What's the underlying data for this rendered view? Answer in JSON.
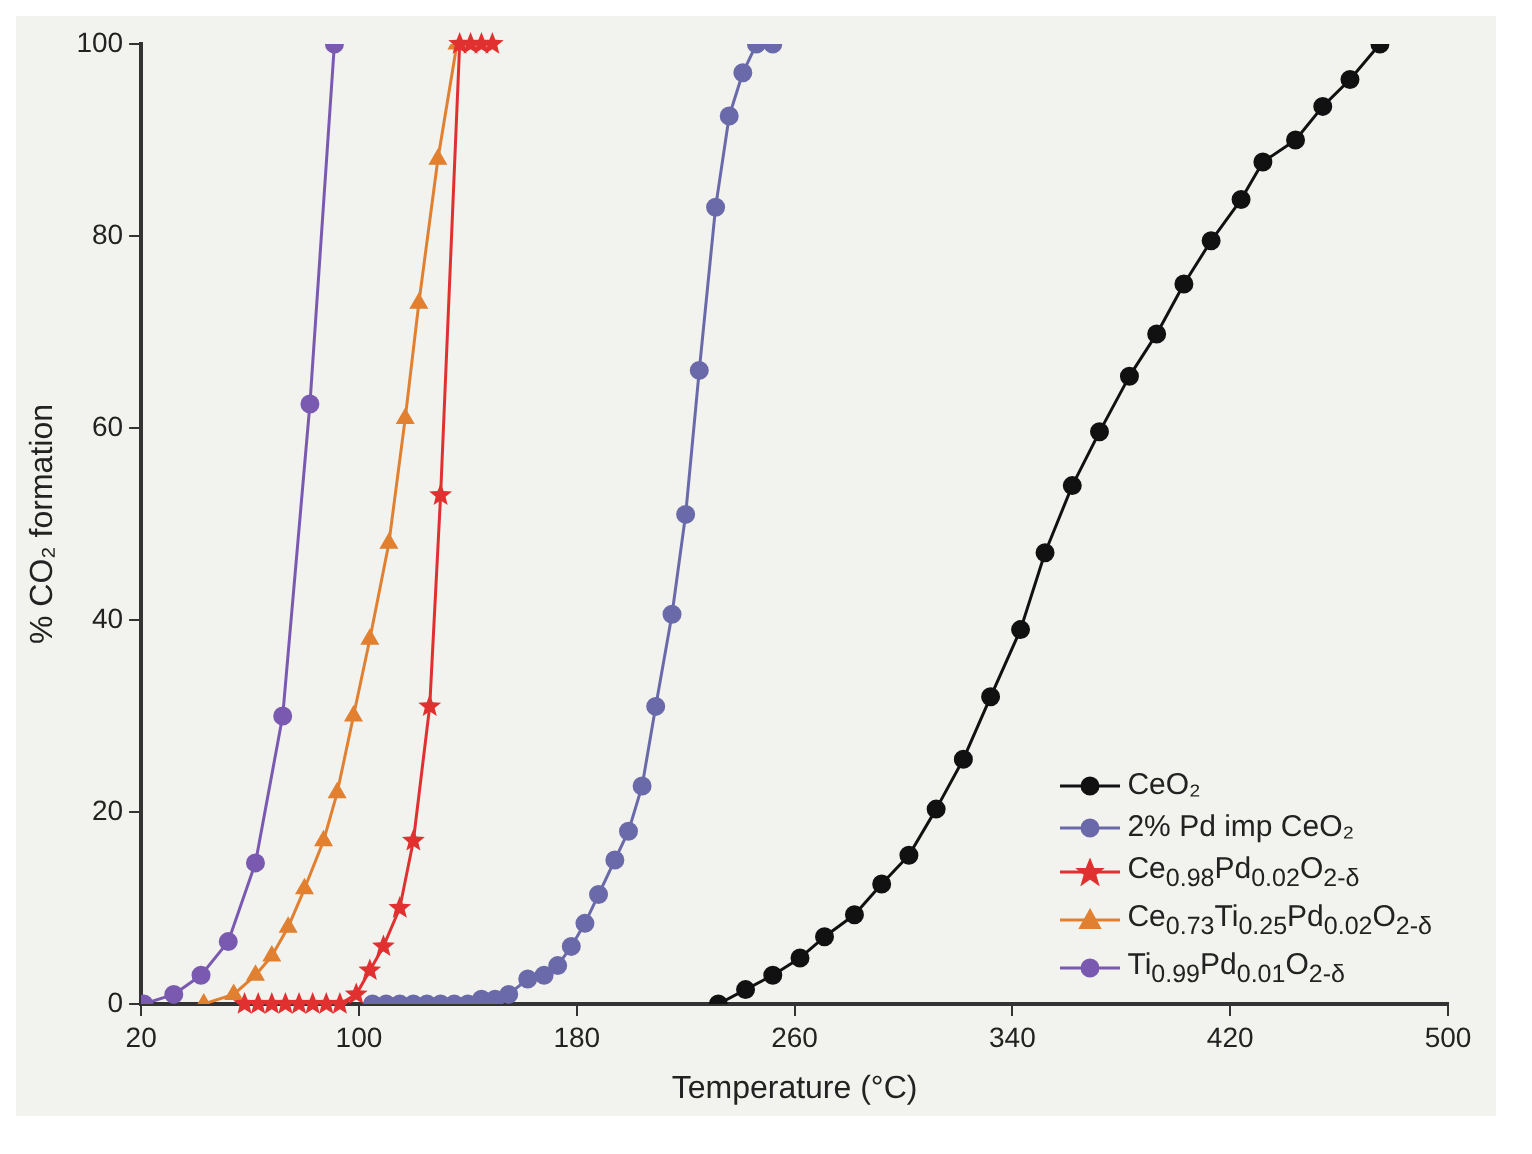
{
  "chart_data": {
    "type": "line",
    "xlabel": "Temperature (°C)",
    "ylabel": "% CO₂ formation",
    "xlim": [
      20,
      500
    ],
    "xticks": [
      20,
      100,
      180,
      260,
      340,
      420,
      500
    ],
    "ylim": [
      0,
      100
    ],
    "yticks": [
      0,
      20,
      40,
      60,
      80,
      100
    ],
    "grid": false,
    "legend": "bottom right",
    "line_style": "solid",
    "series": [
      {
        "name": "CeO₂",
        "color": "#111111",
        "marker": "circle",
        "x": [
          232,
          242,
          252,
          262,
          271,
          282,
          292,
          302,
          312,
          322,
          332,
          343,
          352,
          362,
          372,
          383,
          393,
          403,
          413,
          424,
          432,
          444,
          454,
          464,
          475
        ],
        "values": [
          0,
          1.5,
          3,
          4.8,
          7,
          9.3,
          12.5,
          15.5,
          20.3,
          25.5,
          32,
          39,
          47,
          54,
          59.6,
          65.4,
          69.8,
          75,
          79.5,
          83.8,
          87.7,
          90,
          93.5,
          96.3,
          100
        ]
      },
      {
        "name": "2% Pd imp CeO₂",
        "color": "#6a6aaa",
        "marker": "circle",
        "x": [
          105,
          110,
          115,
          120,
          125,
          130,
          135,
          140,
          145,
          150,
          155,
          162,
          168,
          173,
          178,
          183,
          188,
          194,
          199,
          204,
          209,
          215,
          220,
          225,
          231,
          236,
          241,
          246,
          252
        ],
        "values": [
          0,
          0,
          0,
          0,
          0,
          0,
          0,
          0,
          0.5,
          0.5,
          1,
          2.6,
          3,
          4,
          6,
          8.4,
          11.4,
          15,
          18,
          22.7,
          31,
          40.6,
          51,
          66,
          83,
          92.5,
          97,
          100,
          100
        ]
      },
      {
        "name": "Ce$_{0.98}$Pd$_{0.02}$O$_{2-δ}$",
        "color": "#e03030",
        "marker": "star",
        "x": [
          58,
          63,
          68,
          73,
          78,
          83,
          88,
          93,
          99,
          104,
          109,
          115,
          120,
          126,
          130,
          137,
          141,
          145,
          149
        ],
        "values": [
          0,
          0,
          0,
          0,
          0,
          0,
          0,
          0,
          1,
          3.5,
          6,
          10,
          17,
          31,
          53,
          100,
          100,
          100,
          100
        ]
      },
      {
        "name": "Ce$_{0.73}$Ti$_{0.25}$Pd$_{0.02}$O$_{2-δ}$",
        "color": "#e08030",
        "marker": "triangle",
        "x": [
          43,
          54,
          62,
          68,
          74,
          80,
          87,
          92,
          98,
          104,
          111,
          117,
          122,
          129,
          136
        ],
        "values": [
          0,
          1,
          3,
          5,
          8,
          12,
          17,
          22,
          30,
          38,
          48,
          61,
          73,
          88,
          100
        ]
      },
      {
        "name": "Ti$_{0.99}$Pd$_{0.01}$O$_{2-δ}$",
        "color": "#7a5ab0",
        "marker": "circle",
        "x": [
          21,
          32,
          42,
          52,
          62,
          72,
          82,
          91
        ],
        "values": [
          0,
          1,
          3,
          6.5,
          14.7,
          30,
          62.5,
          100
        ]
      }
    ]
  }
}
